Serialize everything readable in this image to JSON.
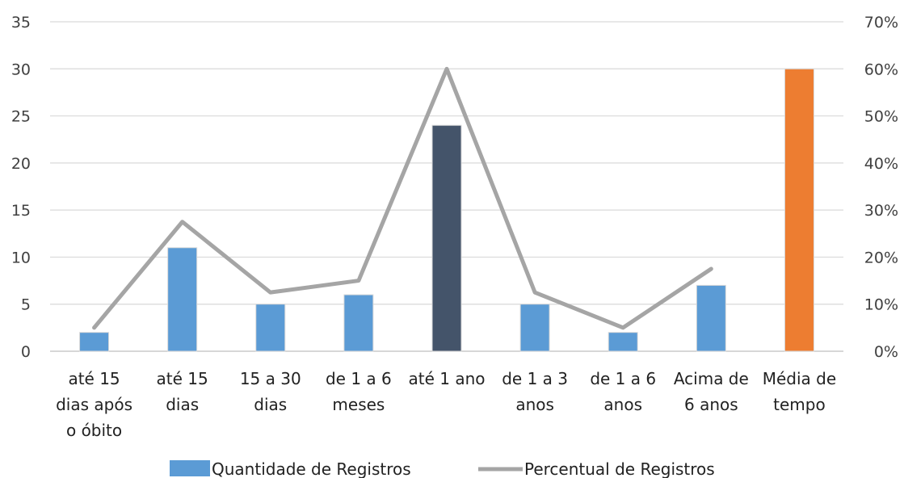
{
  "chart_data": {
    "type": "bar",
    "categories": [
      [
        "até 15",
        "dias após",
        "o óbito"
      ],
      [
        "até 15",
        "dias"
      ],
      [
        "15 a 30",
        "dias"
      ],
      [
        "de 1 a 6",
        "meses"
      ],
      [
        "até 1 ano"
      ],
      [
        "de 1 a 3",
        "anos"
      ],
      [
        "de 1 a 6",
        "anos"
      ],
      [
        "Acima de",
        "6 anos"
      ],
      [
        "Média de",
        "tempo"
      ]
    ],
    "series": [
      {
        "name": "Quantidade de Registros",
        "kind": "bar",
        "axis": "left",
        "values": [
          2,
          11,
          5,
          6,
          24,
          5,
          2,
          7,
          30
        ],
        "color": "#5b9bd5",
        "highlight_colors": {
          "4": "#44546a",
          "8": "#ed7d31"
        }
      },
      {
        "name": "Percentual de Registros",
        "kind": "line",
        "axis": "right",
        "values": [
          0.05,
          0.275,
          0.125,
          0.15,
          0.6,
          0.125,
          0.05,
          0.175,
          null
        ],
        "color": "#a5a5a5"
      }
    ],
    "y_left": {
      "min": 0,
      "max": 35,
      "ticks": [
        "0",
        "5",
        "10",
        "15",
        "20",
        "25",
        "30",
        "35"
      ]
    },
    "y_right": {
      "min": 0,
      "max": 0.7,
      "ticks": [
        "0%",
        "10%",
        "20%",
        "30%",
        "40%",
        "50%",
        "60%",
        "70%"
      ]
    },
    "grid": true,
    "legend_position": "bottom"
  }
}
